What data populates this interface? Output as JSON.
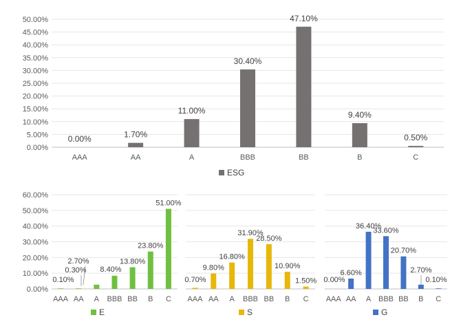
{
  "chart_data": [
    {
      "type": "bar",
      "title": "",
      "xlabel": "",
      "ylabel": "",
      "categories": [
        "AAA",
        "AA",
        "A",
        "BBB",
        "BB",
        "B",
        "C"
      ],
      "series": [
        {
          "name": "ESG",
          "values": [
            0.0,
            1.7,
            11.0,
            30.4,
            47.1,
            9.4,
            0.5
          ]
        }
      ],
      "data_labels": [
        "0.00%",
        "1.70%",
        "11.00%",
        "30.40%",
        "47.10%",
        "9.40%",
        "0.50%"
      ],
      "ylim": [
        0,
        50
      ],
      "yticks": [
        "0.00%",
        "5.00%",
        "10.00%",
        "15.00%",
        "20.00%",
        "25.00%",
        "30.00%",
        "35.00%",
        "40.00%",
        "45.00%",
        "50.00%"
      ],
      "grid": true,
      "legend": "bottom",
      "color": "#767171"
    },
    {
      "type": "bar",
      "title": "",
      "xlabel": "",
      "ylabel": "",
      "categories": [
        "AAA",
        "AA",
        "A",
        "BBB",
        "BB",
        "B",
        "C"
      ],
      "series": [
        {
          "name": "E",
          "values": [
            0.1,
            0.3,
            2.7,
            8.4,
            13.8,
            23.8,
            51.0
          ]
        }
      ],
      "data_labels": [
        "0.10%",
        "0.30%",
        "2.70%",
        "8.40%",
        "13.80%",
        "23.80%",
        "51.00%"
      ],
      "ylim": [
        0,
        60
      ],
      "yticks": [
        "0.00%",
        "10.00%",
        "20.00%",
        "30.00%",
        "40.00%",
        "50.00%",
        "60.00%"
      ],
      "grid": true,
      "legend": "bottom",
      "color": "#70C040"
    },
    {
      "type": "bar",
      "title": "",
      "xlabel": "",
      "ylabel": "",
      "categories": [
        "AAA",
        "AA",
        "A",
        "BBB",
        "BB",
        "B",
        "C"
      ],
      "series": [
        {
          "name": "S",
          "values": [
            0.7,
            9.8,
            16.8,
            31.9,
            28.5,
            10.9,
            1.5
          ]
        }
      ],
      "data_labels": [
        "0.70%",
        "9.80%",
        "16.80%",
        "31.90%",
        "28.50%",
        "10.90%",
        "1.50%"
      ],
      "ylim": [
        0,
        60
      ],
      "grid": true,
      "legend": "bottom",
      "color": "#E8B70A"
    },
    {
      "type": "bar",
      "title": "",
      "xlabel": "",
      "ylabel": "",
      "categories": [
        "AAA",
        "AA",
        "A",
        "BBB",
        "BB",
        "B",
        "C"
      ],
      "series": [
        {
          "name": "G",
          "values": [
            0.0,
            6.6,
            36.4,
            33.6,
            20.7,
            2.7,
            0.1
          ]
        }
      ],
      "data_labels": [
        "0.00%",
        "6.60%",
        "36.40%",
        "33.60%",
        "20.70%",
        "2.70%",
        "0.10%"
      ],
      "ylim": [
        0,
        60
      ],
      "grid": true,
      "legend": "bottom",
      "color": "#4472C4"
    }
  ]
}
